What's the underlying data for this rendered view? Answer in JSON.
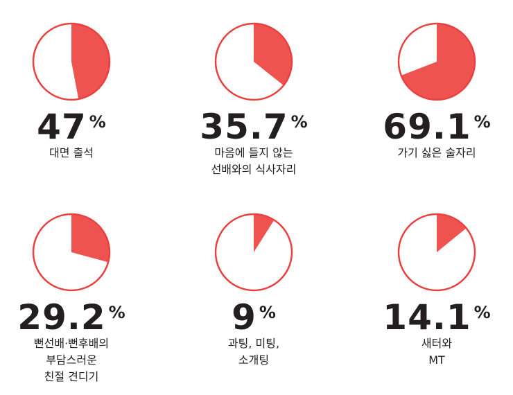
{
  "chart_data": [
    {
      "type": "pie",
      "label": "대면 출석",
      "value": 47,
      "value_text": "47",
      "unit": "%"
    },
    {
      "type": "pie",
      "label": "마음에 들지  않는\n선배와의 식사자리",
      "value": 35.7,
      "value_text": "35.7",
      "unit": "%"
    },
    {
      "type": "pie",
      "label": "가기 싫은 술자리",
      "value": 69.1,
      "value_text": "69.1",
      "unit": "%"
    },
    {
      "type": "pie",
      "label": "뻔선배·뻔후배의\n부담스러운\n친절 견디기",
      "value": 29.2,
      "value_text": "29.2",
      "unit": "%"
    },
    {
      "type": "pie",
      "label": "과팅, 미팅,\n소개팅",
      "value": 9,
      "value_text": "9",
      "unit": "%"
    },
    {
      "type": "pie",
      "label": "새터와\nMT",
      "value": 14.1,
      "value_text": "14.1",
      "unit": "%"
    }
  ],
  "colors": {
    "fill": "#ef5350",
    "outline": "#e8413e",
    "background": "#ffffff",
    "text": "#231f20"
  }
}
